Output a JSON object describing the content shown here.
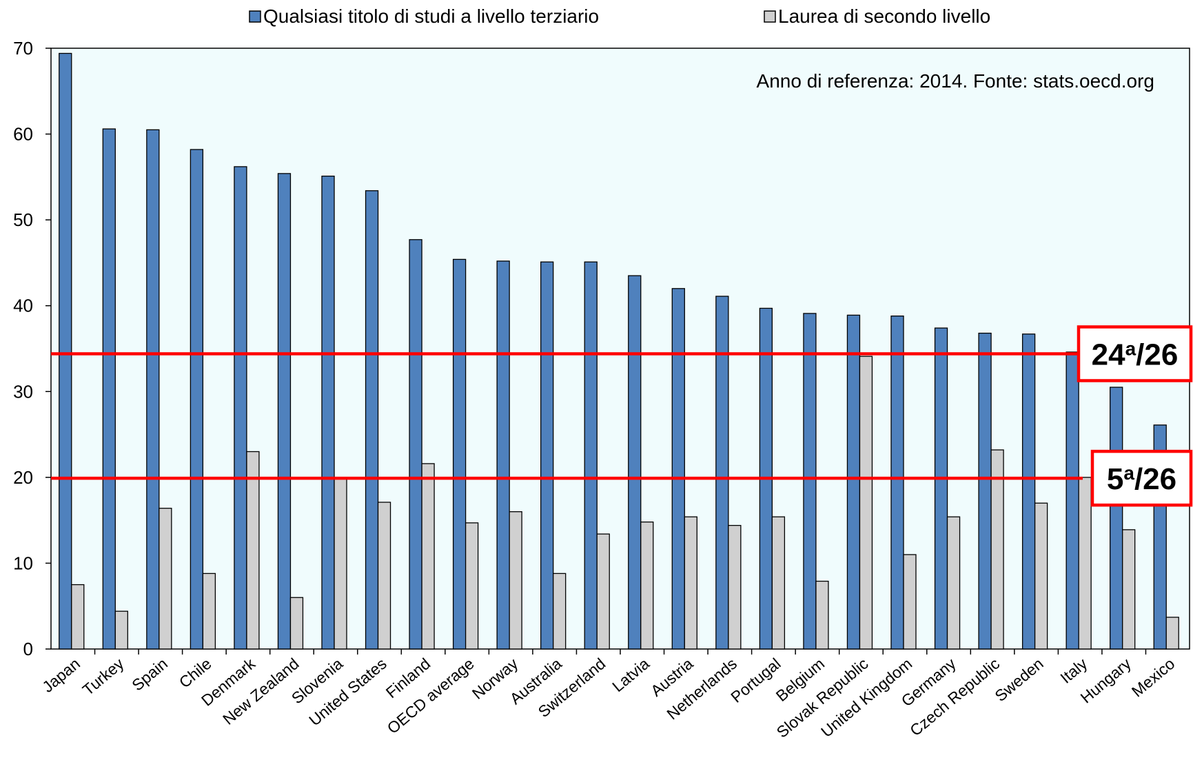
{
  "chart_data": {
    "type": "bar",
    "ylim": [
      0,
      70
    ],
    "yticks": [
      0,
      10,
      20,
      30,
      40,
      50,
      60,
      70
    ],
    "grid": false,
    "legend_position": "top",
    "categories": [
      "Japan",
      "Turkey",
      "Spain",
      "Chile",
      "Denmark",
      "New Zealand",
      "Slovenia",
      "United States",
      "Finland",
      "OECD average",
      "Norway",
      "Australia",
      "Switzerland",
      "Latvia",
      "Austria",
      "Netherlands",
      "Portugal",
      "Belgium",
      "Slovak Republic",
      "United Kingdom",
      "Germany",
      "Czech Republic",
      "Sweden",
      "Italy",
      "Hungary",
      "Mexico"
    ],
    "series": [
      {
        "name": "Qualsiasi titolo di studi a livello terziario",
        "color": "#4f81bd",
        "values": [
          69.4,
          60.6,
          60.5,
          58.2,
          56.2,
          55.4,
          55.1,
          53.4,
          47.7,
          45.4,
          45.2,
          45.1,
          45.1,
          43.5,
          42.0,
          41.1,
          39.7,
          39.1,
          38.9,
          38.8,
          37.4,
          36.8,
          36.7,
          34.6,
          30.5,
          26.1
        ]
      },
      {
        "name": "Laurea di secondo livello",
        "color": "#d0d0d0",
        "values": [
          7.5,
          4.4,
          16.4,
          8.8,
          23.0,
          6.0,
          19.9,
          17.1,
          21.6,
          14.7,
          16.0,
          8.8,
          13.4,
          14.8,
          15.4,
          14.4,
          15.4,
          7.9,
          34.1,
          11.0,
          15.4,
          23.2,
          17.0,
          20.0,
          13.9,
          3.7
        ]
      }
    ],
    "annotation": "Anno di referenza: 2014. Fonte: stats.oecd.org",
    "reference_lines": [
      {
        "value": 34.4,
        "rank": "24",
        "sup": "a",
        "total": "/26",
        "color": "#ff0000"
      },
      {
        "value": 19.9,
        "rank": "5",
        "sup": "a",
        "total": "/26",
        "color": "#ff0000"
      }
    ],
    "plot_background": "#f0fcfd"
  }
}
